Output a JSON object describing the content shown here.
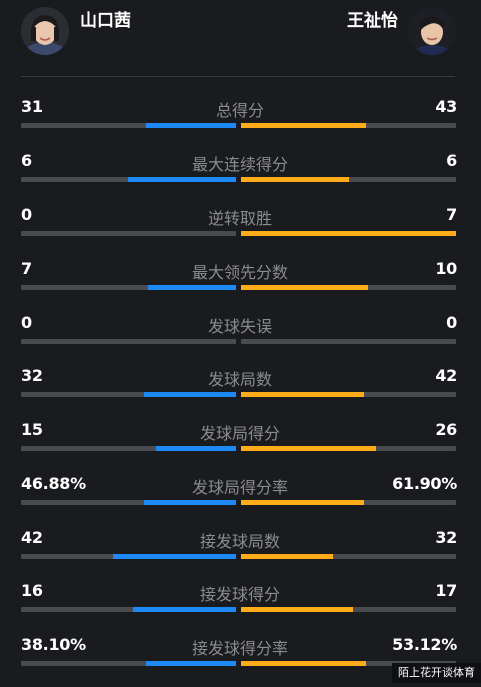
{
  "players": {
    "left": {
      "name": "山口茜",
      "color": "#1e88f5"
    },
    "right": {
      "name": "王祉怡",
      "color": "#ffab1a"
    }
  },
  "stats": [
    {
      "label": "总得分",
      "left": "31",
      "right": "43",
      "left_ratio": 0.42,
      "right_ratio": 0.58
    },
    {
      "label": "最大连续得分",
      "left": "6",
      "right": "6",
      "left_ratio": 0.5,
      "right_ratio": 0.5
    },
    {
      "label": "逆转取胜",
      "left": "0",
      "right": "7",
      "left_ratio": 0.0,
      "right_ratio": 1.0
    },
    {
      "label": "最大领先分数",
      "left": "7",
      "right": "10",
      "left_ratio": 0.41,
      "right_ratio": 0.59
    },
    {
      "label": "发球失误",
      "left": "0",
      "right": "0",
      "left_ratio": 0.0,
      "right_ratio": 0.0
    },
    {
      "label": "发球局数",
      "left": "32",
      "right": "42",
      "left_ratio": 0.43,
      "right_ratio": 0.57
    },
    {
      "label": "发球局得分",
      "left": "15",
      "right": "26",
      "left_ratio": 0.37,
      "right_ratio": 0.63
    },
    {
      "label": "发球局得分率",
      "left": "46.88%",
      "right": "61.90%",
      "left_ratio": 0.43,
      "right_ratio": 0.57
    },
    {
      "label": "接发球局数",
      "left": "42",
      "right": "32",
      "left_ratio": 0.57,
      "right_ratio": 0.43
    },
    {
      "label": "接发球得分",
      "left": "16",
      "right": "17",
      "left_ratio": 0.48,
      "right_ratio": 0.52
    },
    {
      "label": "接发球得分率",
      "left": "38.10%",
      "right": "53.12%",
      "left_ratio": 0.42,
      "right_ratio": 0.58
    }
  ],
  "watermark": "陌上花开谈体育"
}
